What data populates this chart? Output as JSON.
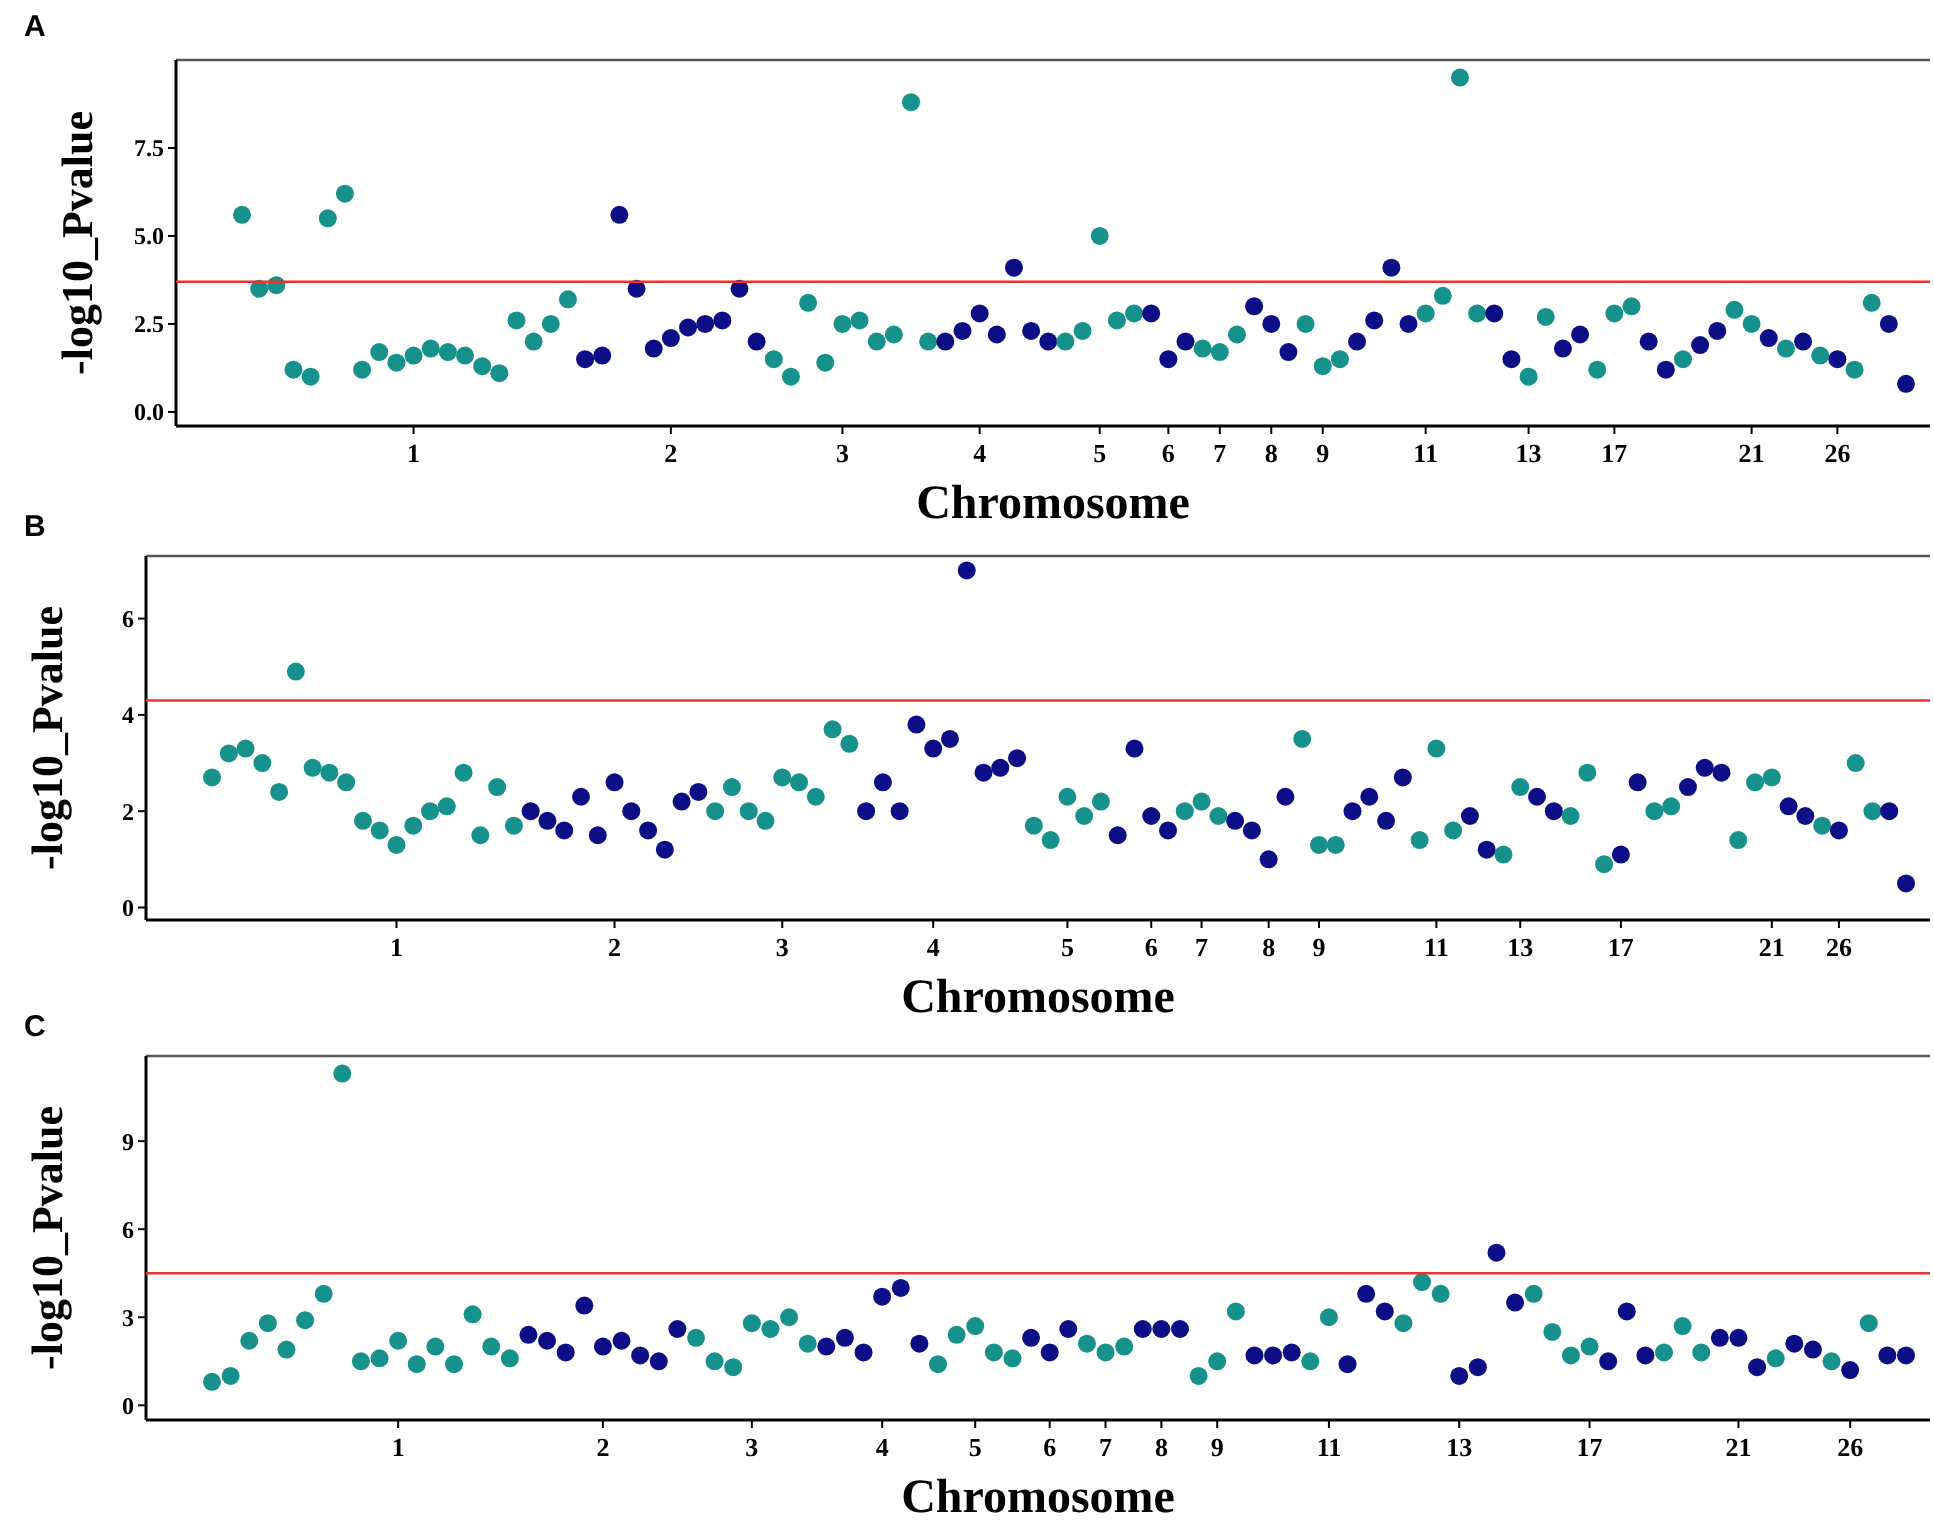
{
  "chart_data": [
    {
      "type": "scatter",
      "title": "A",
      "xlabel": "Chromosome",
      "ylabel": "-log10_Pvalue",
      "marker": "circle",
      "categories": [
        null,
        null,
        null,
        null,
        null,
        null,
        null,
        null,
        null,
        null,
        "1",
        null,
        null,
        null,
        null,
        null,
        null,
        null,
        null,
        null,
        null,
        null,
        null,
        null,
        null,
        "2",
        null,
        null,
        null,
        null,
        null,
        null,
        null,
        null,
        null,
        "3",
        null,
        null,
        null,
        null,
        null,
        null,
        null,
        "4",
        null,
        null,
        null,
        null,
        null,
        null,
        "5",
        null,
        null,
        null,
        "6",
        null,
        null,
        "7",
        null,
        null,
        "8",
        null,
        null,
        "9",
        null,
        null,
        null,
        null,
        null,
        "11",
        null,
        null,
        null,
        null,
        null,
        "13",
        null,
        null,
        null,
        null,
        "17",
        null,
        null,
        null,
        null,
        null,
        null,
        null,
        "21",
        null,
        null,
        null,
        null,
        "26",
        null,
        null,
        null,
        null
      ],
      "values": [
        5.6,
        3.5,
        3.6,
        1.2,
        1.0,
        5.5,
        6.2,
        1.2,
        1.7,
        1.4,
        1.6,
        1.8,
        1.7,
        1.6,
        1.3,
        1.1,
        2.6,
        2.0,
        2.5,
        3.2,
        1.5,
        1.6,
        5.6,
        3.5,
        1.8,
        2.1,
        2.4,
        2.5,
        2.6,
        3.5,
        2.0,
        1.5,
        1.0,
        3.1,
        1.4,
        2.5,
        2.6,
        2.0,
        2.2,
        8.8,
        2.0,
        2.0,
        2.3,
        2.8,
        2.2,
        4.1,
        2.3,
        2.0,
        2.0,
        2.3,
        5.0,
        2.6,
        2.8,
        2.8,
        1.5,
        2.0,
        1.8,
        1.7,
        2.2,
        3.0,
        2.5,
        1.7,
        2.5,
        1.3,
        1.5,
        2.0,
        2.6,
        4.1,
        2.5,
        2.8,
        3.3,
        9.5,
        2.8,
        2.8,
        1.5,
        1.0,
        2.7,
        1.8,
        2.2,
        1.2,
        2.8,
        3.0,
        2.0,
        1.2,
        1.5,
        1.9,
        2.3,
        2.9,
        2.5,
        2.1,
        1.8,
        2.0,
        1.6,
        1.5,
        1.2,
        3.1,
        2.5,
        0.8
      ],
      "colors": [
        "#17918b",
        "#17918b",
        "#17918b",
        "#17918b",
        "#17918b",
        "#17918b",
        "#17918b",
        "#17918b",
        "#17918b",
        "#17918b",
        "#17918b",
        "#17918b",
        "#17918b",
        "#17918b",
        "#17918b",
        "#17918b",
        "#17918b",
        "#17918b",
        "#17918b",
        "#17918b",
        "#0d0d85",
        "#0d0d85",
        "#0d0d85",
        "#0d0d85",
        "#0d0d85",
        "#0d0d85",
        "#0d0d85",
        "#0d0d85",
        "#0d0d85",
        "#0d0d85",
        "#0d0d85",
        "#17918b",
        "#17918b",
        "#17918b",
        "#17918b",
        "#17918b",
        "#17918b",
        "#17918b",
        "#17918b",
        "#17918b",
        "#17918b",
        "#0d0d85",
        "#0d0d85",
        "#0d0d85",
        "#0d0d85",
        "#0d0d85",
        "#0d0d85",
        "#0d0d85",
        "#17918b",
        "#17918b",
        "#17918b",
        "#17918b",
        "#17918b",
        "#0d0d85",
        "#0d0d85",
        "#0d0d85",
        "#17918b",
        "#17918b",
        "#17918b",
        "#0d0d85",
        "#0d0d85",
        "#0d0d85",
        "#17918b",
        "#17918b",
        "#17918b",
        "#0d0d85",
        "#0d0d85",
        "#0d0d85",
        "#0d0d85",
        "#17918b",
        "#17918b",
        "#17918b",
        "#17918b",
        "#0d0d85",
        "#0d0d85",
        "#17918b",
        "#17918b",
        "#0d0d85",
        "#0d0d85",
        "#17918b",
        "#17918b",
        "#17918b",
        "#0d0d85",
        "#0d0d85",
        "#17918b",
        "#0d0d85",
        "#0d0d85",
        "#17918b",
        "#17918b",
        "#0d0d85",
        "#17918b",
        "#0d0d85",
        "#17918b",
        "#0d0d85",
        "#17918b",
        "#17918b",
        "#0d0d85",
        "#0d0d85"
      ],
      "ylim": [
        -0.4,
        10
      ],
      "yticks": [
        {
          "value": 0,
          "label": "0.0"
        },
        {
          "value": 2.5,
          "label": "2.5"
        },
        {
          "value": 5,
          "label": "5.0"
        },
        {
          "value": 7.5,
          "label": "7.5"
        }
      ],
      "ref_lines": [
        {
          "axis": "y",
          "value": 3.7,
          "color": "#e8332e"
        }
      ]
    },
    {
      "type": "scatter",
      "title": "B",
      "xlabel": "Chromosome",
      "ylabel": "-log10_Pvalue",
      "marker": "circle",
      "categories": [
        null,
        null,
        null,
        null,
        null,
        null,
        null,
        null,
        null,
        null,
        null,
        "1",
        null,
        null,
        null,
        null,
        null,
        null,
        null,
        null,
        null,
        null,
        null,
        null,
        "2",
        null,
        null,
        null,
        null,
        null,
        null,
        null,
        null,
        null,
        "3",
        null,
        null,
        null,
        null,
        null,
        null,
        null,
        null,
        "4",
        null,
        null,
        null,
        null,
        null,
        null,
        null,
        "5",
        null,
        null,
        null,
        null,
        "6",
        null,
        null,
        "7",
        null,
        null,
        null,
        "8",
        null,
        null,
        "9",
        null,
        null,
        null,
        null,
        null,
        null,
        "11",
        null,
        null,
        null,
        null,
        "13",
        null,
        null,
        null,
        null,
        null,
        "17",
        null,
        null,
        null,
        null,
        null,
        null,
        null,
        null,
        "21",
        null,
        null,
        null,
        "26",
        null,
        null,
        null,
        null
      ],
      "values": [
        2.7,
        3.2,
        3.3,
        3.0,
        2.4,
        4.9,
        2.9,
        2.8,
        2.6,
        1.8,
        1.6,
        1.3,
        1.7,
        2.0,
        2.1,
        2.8,
        1.5,
        2.5,
        1.7,
        2.0,
        1.8,
        1.6,
        2.3,
        1.5,
        2.6,
        2.0,
        1.6,
        1.2,
        2.2,
        2.4,
        2.0,
        2.5,
        2.0,
        1.8,
        2.7,
        2.6,
        2.3,
        3.7,
        3.4,
        2.0,
        2.6,
        2.0,
        3.8,
        3.3,
        3.5,
        7.0,
        2.8,
        2.9,
        3.1,
        1.7,
        1.4,
        2.3,
        1.9,
        2.2,
        1.5,
        3.3,
        1.9,
        1.6,
        2.0,
        2.2,
        1.9,
        1.8,
        1.6,
        1.0,
        2.3,
        3.5,
        1.3,
        1.3,
        2.0,
        2.3,
        1.8,
        2.7,
        1.4,
        3.3,
        1.6,
        1.9,
        1.2,
        1.1,
        2.5,
        2.3,
        2.0,
        1.9,
        2.8,
        0.9,
        1.1,
        2.6,
        2.0,
        2.1,
        2.5,
        2.9,
        2.8,
        1.4,
        2.6,
        2.7,
        2.1,
        1.9,
        1.7,
        1.6,
        3.0,
        2.0,
        2.0,
        0.5
      ],
      "colors": [
        "#17918b",
        "#17918b",
        "#17918b",
        "#17918b",
        "#17918b",
        "#17918b",
        "#17918b",
        "#17918b",
        "#17918b",
        "#17918b",
        "#17918b",
        "#17918b",
        "#17918b",
        "#17918b",
        "#17918b",
        "#17918b",
        "#17918b",
        "#17918b",
        "#17918b",
        "#0d0d85",
        "#0d0d85",
        "#0d0d85",
        "#0d0d85",
        "#0d0d85",
        "#0d0d85",
        "#0d0d85",
        "#0d0d85",
        "#0d0d85",
        "#0d0d85",
        "#0d0d85",
        "#17918b",
        "#17918b",
        "#17918b",
        "#17918b",
        "#17918b",
        "#17918b",
        "#17918b",
        "#17918b",
        "#17918b",
        "#0d0d85",
        "#0d0d85",
        "#0d0d85",
        "#0d0d85",
        "#0d0d85",
        "#0d0d85",
        "#0d0d85",
        "#0d0d85",
        "#0d0d85",
        "#0d0d85",
        "#17918b",
        "#17918b",
        "#17918b",
        "#17918b",
        "#17918b",
        "#0d0d85",
        "#0d0d85",
        "#0d0d85",
        "#0d0d85",
        "#17918b",
        "#17918b",
        "#17918b",
        "#0d0d85",
        "#0d0d85",
        "#0d0d85",
        "#0d0d85",
        "#17918b",
        "#17918b",
        "#17918b",
        "#0d0d85",
        "#0d0d85",
        "#0d0d85",
        "#0d0d85",
        "#17918b",
        "#17918b",
        "#17918b",
        "#0d0d85",
        "#0d0d85",
        "#17918b",
        "#17918b",
        "#0d0d85",
        "#0d0d85",
        "#17918b",
        "#17918b",
        "#17918b",
        "#0d0d85",
        "#0d0d85",
        "#17918b",
        "#17918b",
        "#0d0d85",
        "#0d0d85",
        "#0d0d85",
        "#17918b",
        "#17918b",
        "#17918b",
        "#0d0d85",
        "#0d0d85",
        "#17918b",
        "#0d0d85",
        "#17918b",
        "#17918b",
        "#0d0d85",
        "#0d0d85"
      ],
      "ylim": [
        -0.26,
        7.3
      ],
      "yticks": [
        0,
        2,
        4,
        6
      ],
      "ref_lines": [
        {
          "axis": "y",
          "value": 4.3,
          "color": "#e8332e"
        }
      ]
    },
    {
      "type": "scatter",
      "title": "C",
      "xlabel": "Chromosome",
      "ylabel": "-log10_Pvalue",
      "marker": "circle",
      "categories": [
        null,
        null,
        null,
        null,
        null,
        null,
        null,
        null,
        null,
        null,
        "1",
        null,
        null,
        null,
        null,
        null,
        null,
        null,
        null,
        null,
        null,
        "2",
        null,
        null,
        null,
        null,
        null,
        null,
        null,
        "3",
        null,
        null,
        null,
        null,
        null,
        null,
        "4",
        null,
        null,
        null,
        null,
        "5",
        null,
        null,
        null,
        "6",
        null,
        null,
        "7",
        null,
        null,
        "8",
        null,
        null,
        "9",
        null,
        null,
        null,
        null,
        null,
        "11",
        null,
        null,
        null,
        null,
        null,
        null,
        "13",
        null,
        null,
        null,
        null,
        null,
        null,
        "17",
        null,
        null,
        null,
        null,
        null,
        null,
        null,
        "21",
        null,
        null,
        null,
        null,
        null,
        "26",
        null,
        null,
        null
      ],
      "values": [
        0.8,
        1.0,
        2.2,
        2.8,
        1.9,
        2.9,
        3.8,
        11.3,
        1.5,
        1.6,
        2.2,
        1.4,
        2.0,
        1.4,
        3.1,
        2.0,
        1.6,
        2.4,
        2.2,
        1.8,
        3.4,
        2.0,
        2.2,
        1.7,
        1.5,
        2.6,
        2.3,
        1.5,
        1.3,
        2.8,
        2.6,
        3.0,
        2.1,
        2.0,
        2.3,
        1.8,
        3.7,
        4.0,
        2.1,
        1.4,
        2.4,
        2.7,
        1.8,
        1.6,
        2.3,
        1.8,
        2.6,
        2.1,
        1.8,
        2.0,
        2.6,
        2.6,
        2.6,
        1.0,
        1.5,
        3.2,
        1.7,
        1.7,
        1.8,
        1.5,
        3.0,
        1.4,
        3.8,
        3.2,
        2.8,
        4.2,
        3.8,
        1.0,
        1.3,
        5.2,
        3.5,
        3.8,
        2.5,
        1.7,
        2.0,
        1.5,
        3.2,
        1.7,
        1.8,
        2.7,
        1.8,
        2.3,
        2.3,
        1.3,
        1.6,
        2.1,
        1.9,
        1.5,
        1.2,
        2.8,
        1.7,
        1.7
      ],
      "colors": [
        "#17918b",
        "#17918b",
        "#17918b",
        "#17918b",
        "#17918b",
        "#17918b",
        "#17918b",
        "#17918b",
        "#17918b",
        "#17918b",
        "#17918b",
        "#17918b",
        "#17918b",
        "#17918b",
        "#17918b",
        "#17918b",
        "#17918b",
        "#0d0d85",
        "#0d0d85",
        "#0d0d85",
        "#0d0d85",
        "#0d0d85",
        "#0d0d85",
        "#0d0d85",
        "#0d0d85",
        "#0d0d85",
        "#17918b",
        "#17918b",
        "#17918b",
        "#17918b",
        "#17918b",
        "#17918b",
        "#17918b",
        "#0d0d85",
        "#0d0d85",
        "#0d0d85",
        "#0d0d85",
        "#0d0d85",
        "#0d0d85",
        "#17918b",
        "#17918b",
        "#17918b",
        "#17918b",
        "#17918b",
        "#0d0d85",
        "#0d0d85",
        "#0d0d85",
        "#17918b",
        "#17918b",
        "#17918b",
        "#0d0d85",
        "#0d0d85",
        "#0d0d85",
        "#17918b",
        "#17918b",
        "#17918b",
        "#0d0d85",
        "#0d0d85",
        "#0d0d85",
        "#17918b",
        "#17918b",
        "#0d0d85",
        "#0d0d85",
        "#0d0d85",
        "#17918b",
        "#17918b",
        "#17918b",
        "#0d0d85",
        "#0d0d85",
        "#0d0d85",
        "#0d0d85",
        "#17918b",
        "#17918b",
        "#17918b",
        "#17918b",
        "#0d0d85",
        "#0d0d85",
        "#0d0d85",
        "#17918b",
        "#17918b",
        "#17918b",
        "#0d0d85",
        "#0d0d85",
        "#0d0d85",
        "#17918b",
        "#0d0d85",
        "#0d0d85",
        "#17918b",
        "#0d0d85",
        "#17918b",
        "#0d0d85",
        "#0d0d85"
      ],
      "ylim": [
        -0.5,
        11.9
      ],
      "yticks": [
        0,
        3,
        6,
        9
      ],
      "ref_lines": [
        {
          "axis": "y",
          "value": 4.5,
          "color": "#e8332e"
        }
      ]
    }
  ]
}
